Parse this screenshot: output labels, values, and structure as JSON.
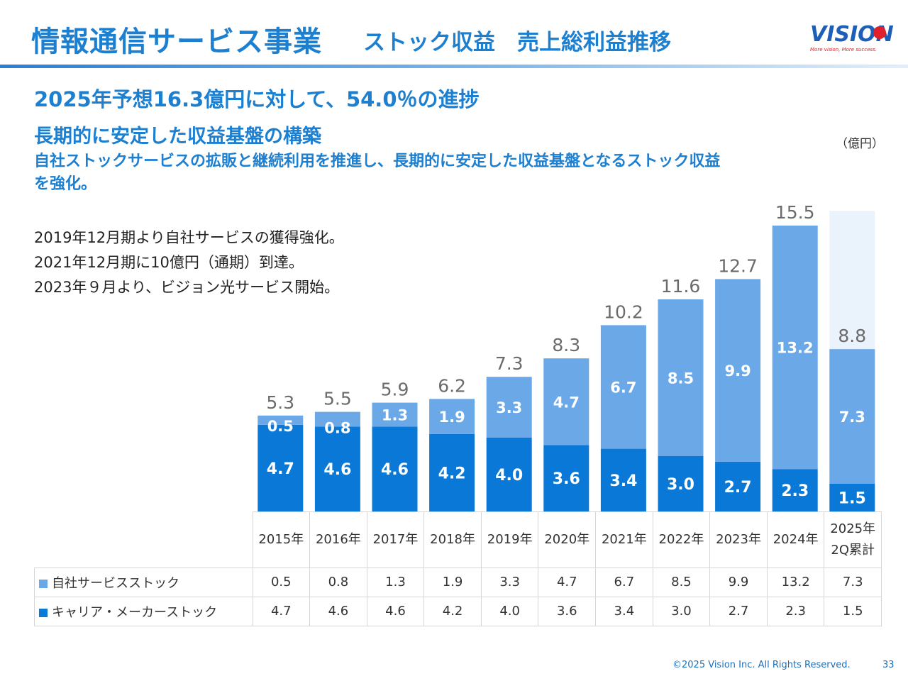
{
  "header": {
    "title_main": "情報通信サービス事業",
    "title_sub": "ストック収益　売上総利益推移",
    "logo_text": "VISION",
    "logo_tagline": "More vision, More success."
  },
  "headline": {
    "line1": "2025年予想16.3億円に対して、54.0％の進捗",
    "line2": "長期的に安定した収益基盤の構築",
    "line3": "自社ストックサービスの拡販と継続利用を推進し、長期的に安定した収益基盤となるストック収益を強化。"
  },
  "notes": [
    "2019年12月期より自社サービスの獲得強化。",
    "2021年12月期に10億円（通期）到達。",
    "2023年９月より、ビジョン光サービス開始。"
  ],
  "unit": "（億円）",
  "colors": {
    "own": "#6aa8e8",
    "carrier": "#0a78d7",
    "forecast_bg": "#eaf3fc",
    "title": "#1d7fd0"
  },
  "chart_data": {
    "type": "bar",
    "stacked": true,
    "categories": [
      "2015年",
      "2016年",
      "2017年",
      "2018年",
      "2019年",
      "2020年",
      "2021年",
      "2022年",
      "2023年",
      "2024年",
      "2025年 2Q累計"
    ],
    "category_lines": [
      [
        "2015年"
      ],
      [
        "2016年"
      ],
      [
        "2017年"
      ],
      [
        "2018年"
      ],
      [
        "2019年"
      ],
      [
        "2020年"
      ],
      [
        "2021年"
      ],
      [
        "2022年"
      ],
      [
        "2023年"
      ],
      [
        "2024年"
      ],
      [
        "2025年",
        "2Q累計"
      ]
    ],
    "series": [
      {
        "name": "キャリア・メーカーストック",
        "color": "#0a78d7",
        "values": [
          4.7,
          4.6,
          4.6,
          4.2,
          4.0,
          3.6,
          3.4,
          3.0,
          2.7,
          2.3,
          1.5
        ]
      },
      {
        "name": "自社サービスストック",
        "color": "#6aa8e8",
        "values": [
          0.5,
          0.8,
          1.3,
          1.9,
          3.3,
          4.7,
          6.7,
          8.5,
          9.9,
          13.2,
          7.3
        ]
      }
    ],
    "totals": [
      5.3,
      5.5,
      5.9,
      6.2,
      7.3,
      8.3,
      10.2,
      11.6,
      12.7,
      15.5,
      8.8
    ],
    "total_labels": [
      "5.3",
      "5.5",
      "5.9",
      "6.2",
      "7.3",
      "8.3",
      "10.2",
      "11.6",
      "12.7",
      "15.5",
      "8.8"
    ],
    "carrier_labels": [
      "4.7",
      "4.6",
      "4.6",
      "4.2",
      "4.0",
      "3.6",
      "3.4",
      "3.0",
      "2.7",
      "2.3",
      "1.5"
    ],
    "own_labels": [
      "0.5",
      "0.8",
      "1.3",
      "1.9",
      "3.3",
      "4.7",
      "6.7",
      "8.5",
      "9.9",
      "13.2",
      "7.3"
    ],
    "forecast_total": 16.3,
    "ylim": [
      0,
      16.3
    ]
  },
  "table": {
    "rows": [
      {
        "label": "自社サービスストック",
        "color": "#6aa8e8",
        "values": [
          "0.5",
          "0.8",
          "1.3",
          "1.9",
          "3.3",
          "4.7",
          "6.7",
          "8.5",
          "9.9",
          "13.2",
          "7.3"
        ]
      },
      {
        "label": "キャリア・メーカーストック",
        "color": "#0a78d7",
        "values": [
          "4.7",
          "4.6",
          "4.6",
          "4.2",
          "4.0",
          "3.6",
          "3.4",
          "3.0",
          "2.7",
          "2.3",
          "1.5"
        ]
      }
    ]
  },
  "footer": {
    "copyright": "©2025 Vision Inc. All Rights Reserved.",
    "page": "33"
  }
}
